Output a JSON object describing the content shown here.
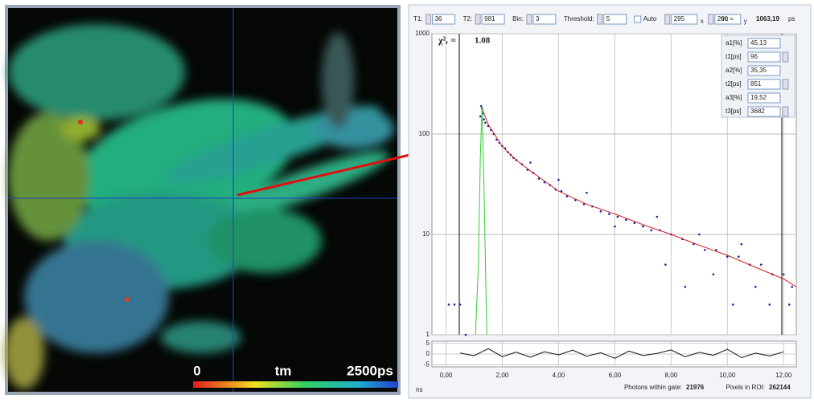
{
  "toolbar": {
    "fields": [
      {
        "label": "T1:",
        "value": 36
      },
      {
        "label": "T2:",
        "value": 981
      },
      {
        "label": "Bin:",
        "value": 3
      },
      {
        "label": "Threshold:",
        "value": 5
      }
    ],
    "auto": "Auto",
    "x_value": 295,
    "x_label": "x",
    "y_value": 260,
    "y_label": "y",
    "tm_label": "tm =",
    "tm_value": "1063,19",
    "tm_unit": "ps"
  },
  "colorbar": {
    "min_label": "0",
    "title": "tm",
    "max_label": "2500ps"
  },
  "footer": {
    "x_unit": "ns",
    "photons_label": "Photons within gate:",
    "photons": 21976,
    "pixels_label": "Pixels in ROI:",
    "pixels": 262144
  },
  "chart_data": [
    {
      "type": "scatter",
      "log_y": true,
      "grid": true,
      "fit_symbol": "χ²ᵣ =",
      "fit_value": 1.08,
      "xlim": [
        -0.5,
        12.45
      ],
      "xticks": [
        {
          "value": 0,
          "label": "0,00"
        },
        {
          "value": 2,
          "label": "2,00"
        },
        {
          "value": 4,
          "label": "4,00"
        },
        {
          "value": 6,
          "label": "6,00"
        },
        {
          "value": 8,
          "label": "8,00"
        },
        {
          "value": 10,
          "label": "10,00"
        },
        {
          "value": 12,
          "label": "12,00"
        }
      ],
      "ylim": [
        1,
        1000
      ],
      "yticks": [
        1,
        10,
        100,
        1000
      ],
      "parameters": [
        {
          "label": "a1[%]",
          "value": "45,13"
        },
        {
          "label": "t1[ps]",
          "value": 96
        },
        {
          "label": "a2[%]",
          "value": "35,35"
        },
        {
          "label": "t2[ps]",
          "value": 851
        },
        {
          "label": "a3[%]",
          "value": "19,52"
        },
        {
          "label": "t3[ps]",
          "value": 3682
        }
      ],
      "series": [
        {
          "style": "points",
          "color": "#1c1ca8",
          "x": [
            0.1,
            0.3,
            0.5,
            0.7,
            1.22,
            1.25,
            1.28,
            1.3,
            1.35,
            1.4,
            1.5,
            1.6,
            1.7,
            1.8,
            1.9,
            2.0,
            2.1,
            2.2,
            2.3,
            2.4,
            2.5,
            2.7,
            2.9,
            3.0,
            3.1,
            3.3,
            3.5,
            3.7,
            3.9,
            4.0,
            4.1,
            4.3,
            4.6,
            4.9,
            5.0,
            5.2,
            5.5,
            5.8,
            6.0,
            6.1,
            6.4,
            6.7,
            7.0,
            7.3,
            7.5,
            7.6,
            7.8,
            8.0,
            8.4,
            8.5,
            8.8,
            9.0,
            9.2,
            9.5,
            9.6,
            10.0,
            10.2,
            10.4,
            10.5,
            10.8,
            11.0,
            11.2,
            11.5,
            11.6,
            12.0,
            12.2,
            12.3
          ],
          "values": [
            2,
            2,
            2,
            1,
            150,
            190,
            180,
            160,
            140,
            130,
            120,
            110,
            100,
            88,
            82,
            76,
            72,
            66,
            62,
            58,
            55,
            50,
            44,
            52,
            41,
            36,
            33,
            31,
            28,
            35,
            27,
            24,
            22,
            20,
            26,
            19,
            17,
            16,
            12,
            15,
            14,
            13,
            12,
            11,
            15,
            11,
            5,
            10,
            9,
            3,
            8,
            10,
            7,
            4,
            7,
            6,
            2,
            6,
            8,
            5,
            3,
            5,
            2,
            4,
            4,
            2,
            3
          ]
        },
        {
          "style": "line",
          "color": "#d42020",
          "x": [
            1.25,
            1.5,
            2,
            2.5,
            3,
            4,
            5,
            6,
            7,
            8,
            9,
            10,
            11,
            12,
            12.45
          ],
          "values": [
            190,
            125,
            75,
            55,
            43,
            27,
            20,
            16,
            12.5,
            10,
            7.8,
            6.2,
            4.7,
            3.6,
            3.0
          ]
        },
        {
          "style": "line",
          "color": "#33cc33",
          "x": [
            1.05,
            1.15,
            1.22,
            1.28,
            1.35,
            1.45
          ],
          "values": [
            1,
            5,
            60,
            190,
            30,
            1
          ]
        }
      ]
    },
    {
      "type": "line",
      "grid": true,
      "ylim": [
        -6,
        6
      ],
      "yticks": [
        5,
        0,
        -5
      ],
      "color": "#111111",
      "x": [
        0.5,
        1,
        1.5,
        2,
        2.5,
        3,
        3.5,
        4,
        4.5,
        5,
        5.5,
        6,
        6.5,
        7,
        7.5,
        8,
        8.5,
        9,
        9.5,
        10,
        10.5,
        11,
        11.5,
        12
      ],
      "values": [
        0.5,
        -0.8,
        2.5,
        -1.2,
        0.9,
        -1.5,
        1.1,
        -0.4,
        1.8,
        -1.0,
        0.6,
        -2.0,
        1.4,
        -0.7,
        0.3,
        1.9,
        -1.3,
        0.8,
        -0.6,
        2.2,
        -1.7,
        0.4,
        -0.9,
        1.0
      ]
    }
  ]
}
